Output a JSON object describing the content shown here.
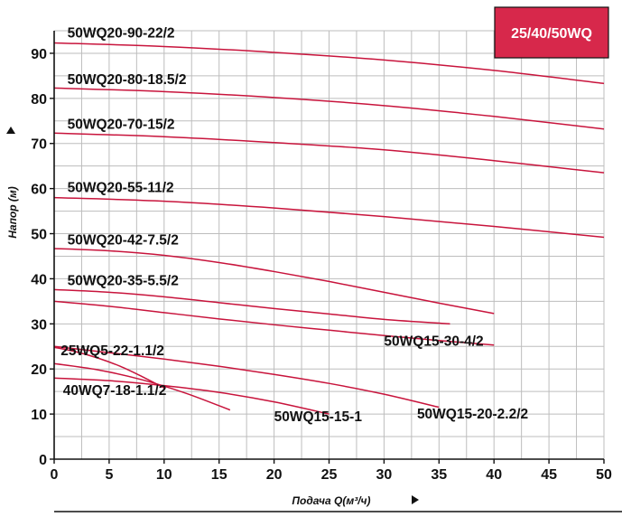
{
  "chart_data": {
    "type": "line",
    "title": "",
    "badge": "25/40/50WQ",
    "xlabel": "Подача Q(м³/ч)",
    "ylabel": "Напор (м)",
    "xlim": [
      0,
      50
    ],
    "ylim": [
      0,
      95
    ],
    "x_ticks": [
      0,
      5,
      10,
      15,
      20,
      25,
      30,
      35,
      40,
      45,
      50
    ],
    "y_ticks": [
      0,
      10,
      20,
      30,
      40,
      50,
      60,
      70,
      80,
      90
    ],
    "grid": true,
    "colors": {
      "curve": "#c8143c",
      "badge": "#d7284b",
      "grid": "#bdbdbd",
      "axis": "#111111"
    },
    "series": [
      {
        "name": "50WQ20-90-22/2",
        "x": [
          0,
          10,
          20,
          30,
          40,
          50
        ],
        "y": [
          92.3,
          91.5,
          90.2,
          88.5,
          86.2,
          83.3
        ]
      },
      {
        "name": "50WQ20-80-18.5/2",
        "x": [
          0,
          10,
          20,
          30,
          40,
          50
        ],
        "y": [
          82.3,
          81.5,
          80.2,
          78.4,
          76.0,
          73.2
        ]
      },
      {
        "name": "50WQ20-70-15/2",
        "x": [
          0,
          10,
          20,
          30,
          40,
          50
        ],
        "y": [
          72.3,
          71.5,
          70.2,
          68.6,
          66.2,
          63.5
        ]
      },
      {
        "name": "50WQ20-55-11/2",
        "x": [
          0,
          10,
          20,
          30,
          40,
          50
        ],
        "y": [
          58.0,
          57.2,
          55.7,
          53.8,
          51.6,
          49.2
        ]
      },
      {
        "name": "50WQ20-42-7.5/2",
        "x": [
          0,
          5,
          10,
          15,
          20,
          25,
          30,
          35,
          40
        ],
        "y": [
          46.7,
          46.2,
          45.2,
          43.6,
          41.6,
          39.4,
          37.0,
          34.6,
          32.3
        ]
      },
      {
        "name": "50WQ20-35-5.5/2",
        "x": [
          0,
          5,
          10,
          15,
          20,
          25,
          30,
          36
        ],
        "y": [
          37.6,
          37.0,
          36.0,
          34.7,
          33.4,
          32.2,
          31.0,
          30.0
        ]
      },
      {
        "name": "50WQ15-30-4/2",
        "x": [
          0,
          5,
          10,
          15,
          20,
          25,
          30,
          35,
          40
        ],
        "y": [
          35.0,
          33.9,
          32.5,
          31.1,
          29.8,
          28.6,
          27.4,
          26.3,
          25.3
        ]
      },
      {
        "name": "50WQ15-20-2.2/2",
        "x": [
          0,
          5,
          10,
          15,
          20,
          25,
          30,
          35
        ],
        "y": [
          25.0,
          23.6,
          22.2,
          20.6,
          18.8,
          16.8,
          14.4,
          11.5
        ]
      },
      {
        "name": "50WQ15-15-1",
        "x": [
          0,
          5,
          10,
          15,
          20,
          25
        ],
        "y": [
          18.0,
          17.4,
          16.3,
          14.8,
          12.7,
          10.0
        ]
      },
      {
        "name": "25WQ5-22-1.1/2",
        "x": [
          0,
          2,
          4,
          6,
          8,
          10
        ],
        "y": [
          24.8,
          23.8,
          22.4,
          20.6,
          18.3,
          15.8
        ]
      },
      {
        "name": "40WQ7-18-1.1/2",
        "x": [
          0,
          4,
          8,
          12,
          16
        ],
        "y": [
          21.2,
          19.8,
          17.6,
          14.6,
          10.9
        ]
      }
    ],
    "labels": [
      {
        "text": "50WQ20-90-22/2",
        "x": 1.2,
        "y": 93.5
      },
      {
        "text": "50WQ20-80-18.5/2",
        "x": 1.2,
        "y": 83.2
      },
      {
        "text": "50WQ20-70-15/2",
        "x": 1.2,
        "y": 73.3
      },
      {
        "text": "50WQ20-55-11/2",
        "x": 1.2,
        "y": 59.2
      },
      {
        "text": "50WQ20-42-7.5/2",
        "x": 1.2,
        "y": 47.6
      },
      {
        "text": "50WQ20-35-5.5/2",
        "x": 1.2,
        "y": 38.6
      },
      {
        "text": "50WQ15-30-4/2",
        "x": 30.0,
        "y": 25.2
      },
      {
        "text": "25WQ5-22-1.1/2",
        "x": 0.6,
        "y": 23.0
      },
      {
        "text": "40WQ7-18-1.1/2",
        "x": 0.8,
        "y": 14.2
      },
      {
        "text": "50WQ15-15-1",
        "x": 20.0,
        "y": 8.4
      },
      {
        "text": "50WQ15-20-2.2/2",
        "x": 33.0,
        "y": 9.0
      }
    ]
  }
}
